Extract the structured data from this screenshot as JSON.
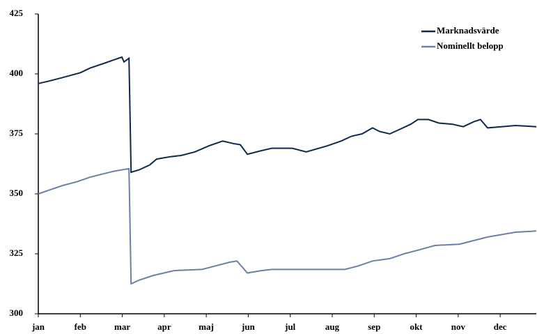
{
  "chart_data": {
    "type": "line",
    "xlim": [
      0,
      11.86
    ],
    "xticks": [
      {
        "value": 0,
        "label": "jan"
      },
      {
        "value": 1,
        "label": "feb"
      },
      {
        "value": 2,
        "label": "mar"
      },
      {
        "value": 3,
        "label": "apr"
      },
      {
        "value": 4,
        "label": "maj"
      },
      {
        "value": 5,
        "label": "jun"
      },
      {
        "value": 6,
        "label": "jul"
      },
      {
        "value": 7,
        "label": "aug"
      },
      {
        "value": 8,
        "label": "sep"
      },
      {
        "value": 9,
        "label": "okt"
      },
      {
        "value": 10,
        "label": "nov"
      },
      {
        "value": 11,
        "label": "dec"
      }
    ],
    "ylim": [
      300,
      425
    ],
    "yticks": [
      300,
      325,
      350,
      375,
      400,
      425
    ],
    "grid": false,
    "legend": "upper right",
    "series": [
      {
        "name": "Marknadsvärde",
        "color": "#0d2a4a",
        "x": [
          0,
          0.25,
          0.58,
          1.0,
          1.24,
          1.58,
          1.82,
          1.99,
          2.04,
          2.16,
          2.21,
          2.4,
          2.65,
          2.82,
          3.15,
          3.4,
          3.73,
          4.06,
          4.39,
          4.64,
          4.81,
          4.98,
          5.31,
          5.56,
          6.05,
          6.38,
          6.88,
          7.21,
          7.46,
          7.71,
          7.96,
          8.13,
          8.37,
          8.62,
          8.87,
          9.04,
          9.29,
          9.54,
          9.87,
          10.12,
          10.36,
          10.53,
          10.7,
          11.03,
          11.36,
          11.86
        ],
        "values": [
          396,
          397,
          398.5,
          400.5,
          402.5,
          404.5,
          406,
          407,
          405,
          406.5,
          359,
          360,
          362,
          364.5,
          365.5,
          366,
          367.5,
          370,
          372,
          371,
          370.5,
          366.5,
          368,
          369,
          369,
          367.5,
          370,
          372,
          374,
          375,
          377.5,
          376,
          375,
          377,
          379,
          381,
          381,
          379.5,
          379,
          378,
          380,
          381,
          377.5,
          378,
          378.5,
          378
        ]
      },
      {
        "name": "Nominellt belopp",
        "color": "#6a80aa",
        "x": [
          0,
          0.25,
          0.58,
          0.91,
          1.24,
          1.58,
          1.82,
          2.16,
          2.21,
          2.4,
          2.74,
          2.99,
          3.23,
          3.9,
          4.23,
          4.56,
          4.73,
          4.98,
          5.31,
          5.56,
          7.3,
          7.63,
          7.96,
          8.37,
          8.71,
          9.04,
          9.45,
          10.03,
          10.36,
          10.7,
          11.03,
          11.36,
          11.86
        ],
        "values": [
          350,
          351.5,
          353.5,
          355,
          357,
          358.5,
          359.5,
          360.5,
          312.5,
          314,
          316,
          317,
          318,
          318.5,
          320,
          321.5,
          322,
          317,
          318,
          318.5,
          318.5,
          320,
          322,
          323,
          325,
          326.5,
          328.5,
          329,
          330.5,
          332,
          333,
          334,
          334.5
        ]
      }
    ]
  }
}
